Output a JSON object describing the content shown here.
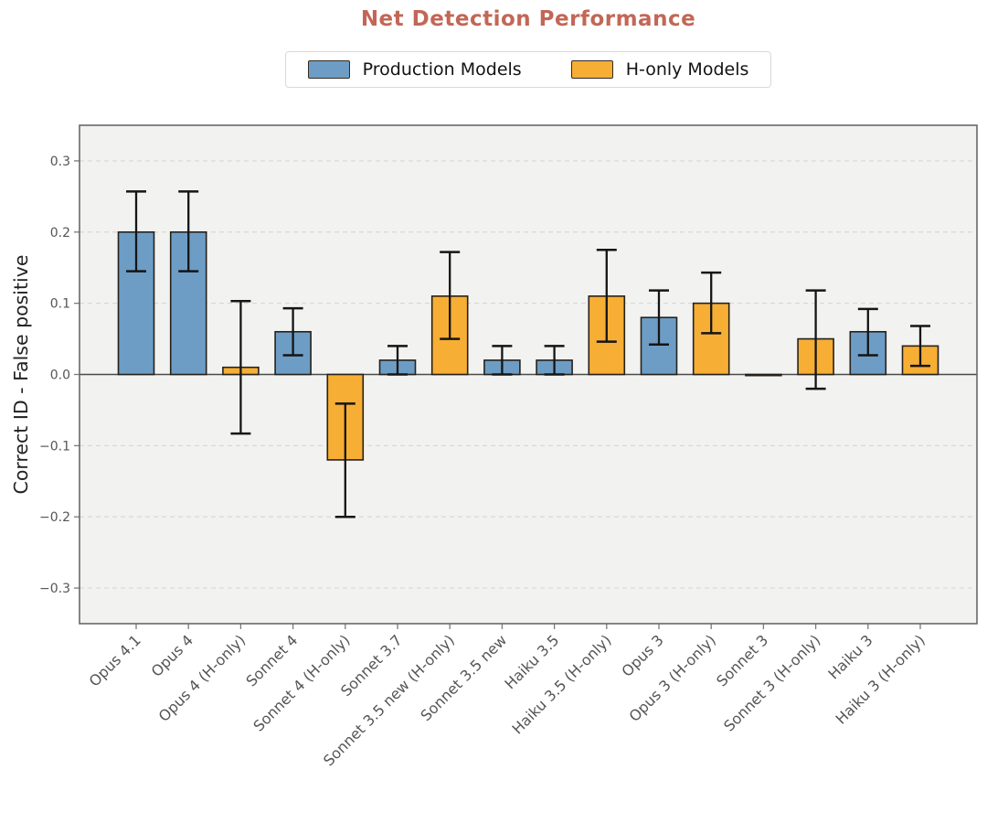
{
  "chart_data": {
    "type": "bar",
    "title": "Net Detection Performance",
    "xlabel": "",
    "ylabel": "Correct ID - False positive",
    "ylim": [
      -0.35,
      0.35
    ],
    "yticks": [
      -0.3,
      -0.2,
      -0.1,
      0.0,
      0.1,
      0.2,
      0.3
    ],
    "grid": "horizontal dashed gridlines at each non-zero tick; solid zero line",
    "legend_position": "top center, outside plot",
    "legend": [
      {
        "key": "production",
        "label": "Production Models",
        "color": "#6d9dc5"
      },
      {
        "key": "h_only",
        "label": "H-only Models",
        "color": "#f7ae34"
      }
    ],
    "categories": [
      "Opus 4.1",
      "Opus 4",
      "Opus 4 (H-only)",
      "Sonnet 4",
      "Sonnet 4 (H-only)",
      "Sonnet 3.7",
      "Sonnet 3.5 new (H-only)",
      "Sonnet 3.5 new",
      "Haiku 3.5",
      "Haiku 3.5 (H-only)",
      "Opus 3",
      "Opus 3 (H-only)",
      "Sonnet 3",
      "Sonnet 3 (H-only)",
      "Haiku 3",
      "Haiku 3 (H-only)"
    ],
    "bars": [
      {
        "label": "Opus 4.1",
        "group": "production",
        "value": 0.2,
        "err_lo": 0.145,
        "err_hi": 0.257
      },
      {
        "label": "Opus 4",
        "group": "production",
        "value": 0.2,
        "err_lo": 0.145,
        "err_hi": 0.257
      },
      {
        "label": "Opus 4 (H-only)",
        "group": "h_only",
        "value": 0.01,
        "err_lo": -0.083,
        "err_hi": 0.103
      },
      {
        "label": "Sonnet 4",
        "group": "production",
        "value": 0.06,
        "err_lo": 0.027,
        "err_hi": 0.093
      },
      {
        "label": "Sonnet 4 (H-only)",
        "group": "h_only",
        "value": -0.12,
        "err_lo": -0.2,
        "err_hi": -0.041
      },
      {
        "label": "Sonnet 3.7",
        "group": "production",
        "value": 0.02,
        "err_lo": 0.0,
        "err_hi": 0.04
      },
      {
        "label": "Sonnet 3.5 new (H-only)",
        "group": "h_only",
        "value": 0.11,
        "err_lo": 0.05,
        "err_hi": 0.172
      },
      {
        "label": "Sonnet 3.5 new",
        "group": "production",
        "value": 0.02,
        "err_lo": 0.0,
        "err_hi": 0.04
      },
      {
        "label": "Haiku 3.5",
        "group": "production",
        "value": 0.02,
        "err_lo": 0.0,
        "err_hi": 0.04
      },
      {
        "label": "Haiku 3.5 (H-only)",
        "group": "h_only",
        "value": 0.11,
        "err_lo": 0.046,
        "err_hi": 0.175
      },
      {
        "label": "Opus 3",
        "group": "production",
        "value": 0.08,
        "err_lo": 0.042,
        "err_hi": 0.118
      },
      {
        "label": "Opus 3 (H-only)",
        "group": "h_only",
        "value": 0.1,
        "err_lo": 0.058,
        "err_hi": 0.143
      },
      {
        "label": "Sonnet 3",
        "group": "production",
        "value": 0.0,
        "err_lo": null,
        "err_hi": null
      },
      {
        "label": "Sonnet 3 (H-only)",
        "group": "h_only",
        "value": 0.05,
        "err_lo": -0.02,
        "err_hi": 0.118
      },
      {
        "label": "Haiku 3",
        "group": "production",
        "value": 0.06,
        "err_lo": 0.027,
        "err_hi": 0.092
      },
      {
        "label": "Haiku 3 (H-only)",
        "group": "h_only",
        "value": 0.04,
        "err_lo": 0.012,
        "err_hi": 0.068
      }
    ],
    "colors": {
      "production_fill": "#6d9dc5",
      "h_only_fill": "#f7ae34",
      "bar_edge": "#26211b",
      "error_bar": "#151515",
      "title": "#c26757",
      "plot_background": "#f2f2f0",
      "plot_border": "#686868",
      "gridline": "#d8d8d8",
      "zero_line": "#4a4a4a",
      "tick_label": "#555555",
      "axis_label": "#222222"
    }
  }
}
